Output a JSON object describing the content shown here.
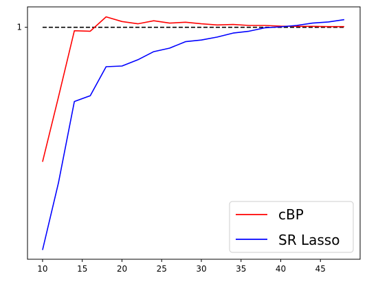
{
  "chart_data": {
    "type": "line",
    "title": "",
    "xlabel": "",
    "ylabel": "",
    "xlim": [
      8.1,
      50.0
    ],
    "ylim": [
      0.0,
      1.088
    ],
    "x_ticks": [
      10,
      15,
      20,
      25,
      30,
      35,
      40,
      45
    ],
    "x_tick_labels": [
      "10",
      "15",
      "20",
      "25",
      "30",
      "35",
      "40",
      "45"
    ],
    "y_ticks": [
      1
    ],
    "y_tick_labels": [
      "1"
    ],
    "grid": false,
    "legend_position": "lower-right",
    "reference_line": {
      "y": 1,
      "style": "dashed",
      "color": "#000000"
    },
    "x": [
      10,
      12,
      14,
      16,
      18,
      20,
      22,
      24,
      26,
      28,
      30,
      32,
      34,
      36,
      38,
      40,
      42,
      44,
      46,
      48
    ],
    "series": [
      {
        "name": "cBP",
        "color": "#ff0000",
        "values": [
          0.42,
          0.7,
          0.985,
          0.983,
          1.045,
          1.025,
          1.015,
          1.028,
          1.018,
          1.022,
          1.015,
          1.01,
          1.012,
          1.008,
          1.008,
          1.005,
          1.004,
          1.004,
          1.003,
          1.003
        ]
      },
      {
        "name": "SR Lasso",
        "color": "#0000ff",
        "values": [
          0.04,
          0.33,
          0.68,
          0.705,
          0.83,
          0.833,
          0.86,
          0.895,
          0.91,
          0.938,
          0.945,
          0.958,
          0.975,
          0.983,
          0.998,
          1.002,
          1.008,
          1.018,
          1.023,
          1.033
        ]
      }
    ]
  }
}
